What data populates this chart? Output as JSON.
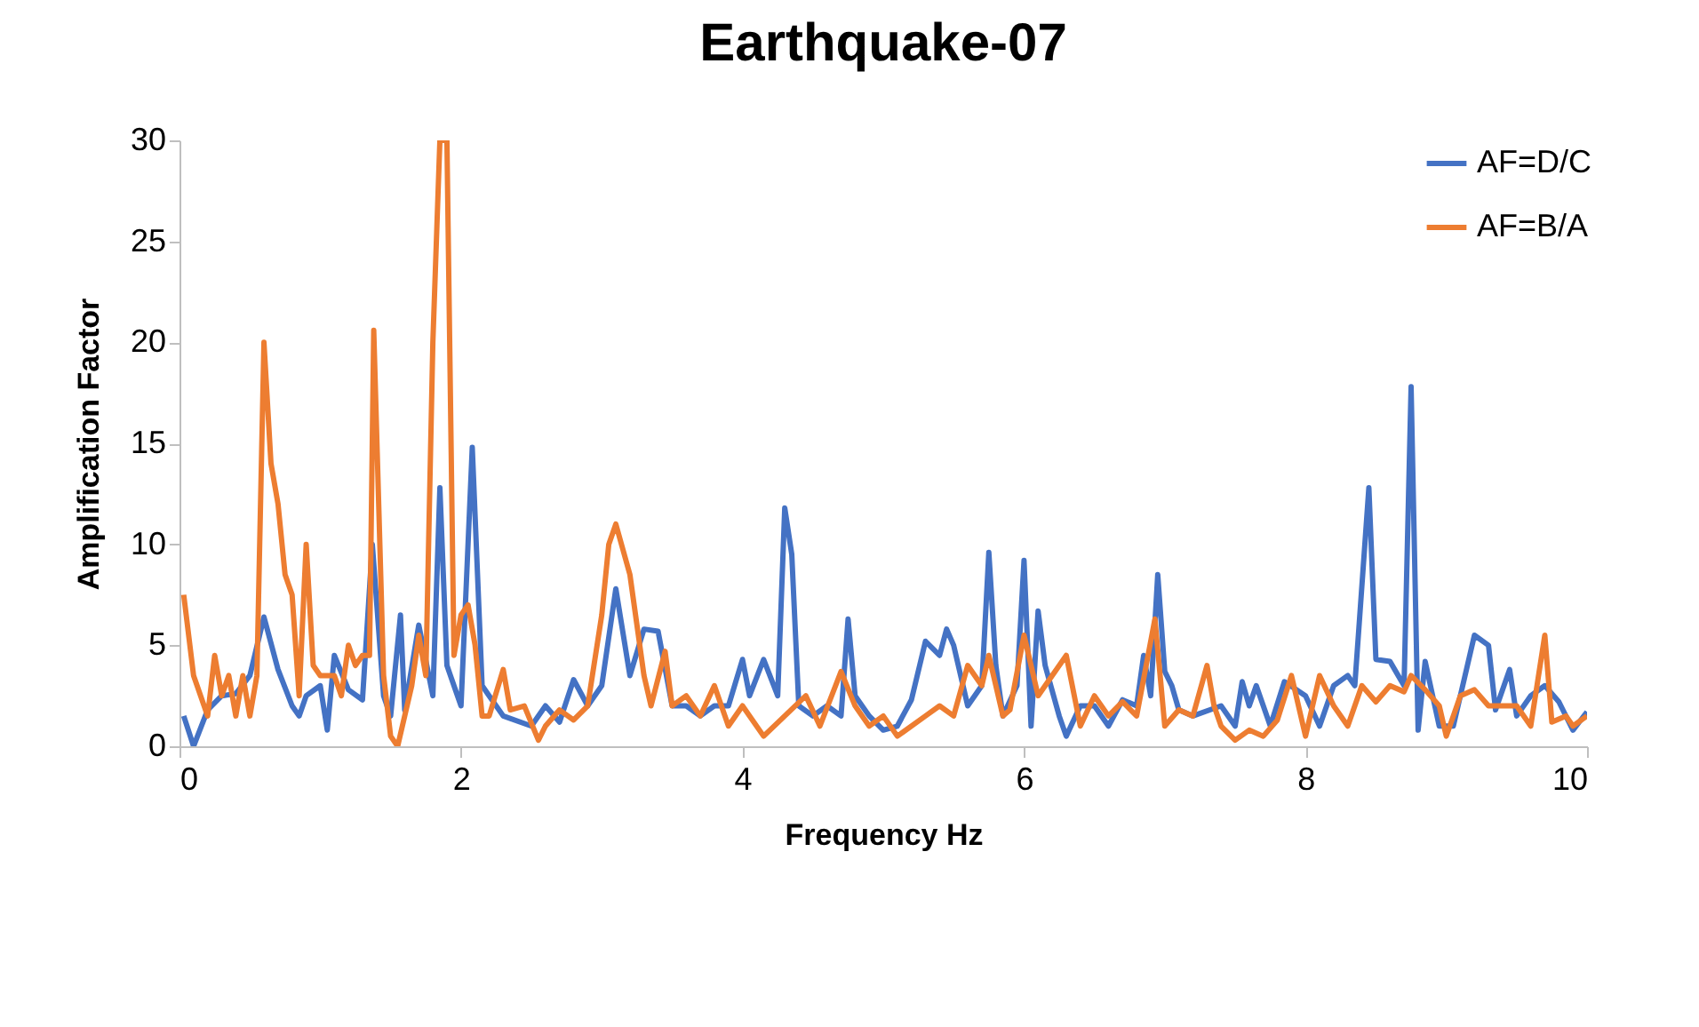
{
  "chart_data": {
    "type": "line",
    "title": "Earthquake-07",
    "xlabel": "Frequency Hz",
    "ylabel": "Amplification Factor",
    "xlim": [
      0,
      10
    ],
    "xticks": [
      0,
      2,
      4,
      6,
      8,
      10
    ],
    "ylim": [
      0,
      30
    ],
    "yticks": [
      0,
      5,
      10,
      15,
      20,
      25,
      30
    ],
    "grid": false,
    "legend": "top right",
    "marker": "none",
    "line_style": "solid",
    "series": [
      {
        "name": "AF=D/C",
        "color": "#4472c4",
        "x": [
          0.03,
          0.1,
          0.2,
          0.3,
          0.4,
          0.5,
          0.6,
          0.7,
          0.8,
          0.85,
          0.9,
          1.0,
          1.05,
          1.1,
          1.2,
          1.3,
          1.37,
          1.45,
          1.5,
          1.57,
          1.6,
          1.7,
          1.8,
          1.85,
          1.9,
          2.0,
          2.08,
          2.15,
          2.2,
          2.3,
          2.5,
          2.6,
          2.7,
          2.8,
          2.9,
          3.0,
          3.1,
          3.2,
          3.3,
          3.4,
          3.5,
          3.6,
          3.7,
          3.8,
          3.9,
          4.0,
          4.05,
          4.15,
          4.25,
          4.3,
          4.35,
          4.4,
          4.5,
          4.6,
          4.7,
          4.75,
          4.8,
          4.9,
          5.0,
          5.1,
          5.2,
          5.3,
          5.4,
          5.45,
          5.5,
          5.6,
          5.7,
          5.75,
          5.8,
          5.85,
          5.95,
          6.0,
          6.05,
          6.1,
          6.15,
          6.25,
          6.3,
          6.4,
          6.5,
          6.6,
          6.7,
          6.8,
          6.85,
          6.9,
          6.95,
          7.0,
          7.05,
          7.1,
          7.2,
          7.4,
          7.5,
          7.55,
          7.6,
          7.65,
          7.75,
          7.85,
          8.0,
          8.1,
          8.2,
          8.3,
          8.35,
          8.45,
          8.5,
          8.6,
          8.7,
          8.75,
          8.8,
          8.85,
          8.95,
          9.05,
          9.2,
          9.3,
          9.35,
          9.45,
          9.5,
          9.6,
          9.7,
          9.8,
          9.9,
          10.0
        ],
        "values": [
          1.5,
          0,
          1.8,
          2.5,
          2.6,
          3.5,
          6.4,
          3.8,
          2.0,
          1.5,
          2.5,
          3.0,
          0.8,
          4.5,
          2.8,
          2.3,
          10.0,
          2.5,
          1.5,
          6.5,
          1.8,
          6.0,
          2.5,
          12.8,
          4.0,
          2.0,
          14.8,
          3.0,
          2.5,
          1.5,
          1.0,
          2.0,
          1.2,
          3.3,
          2.0,
          3.0,
          7.8,
          3.5,
          5.8,
          5.7,
          2.0,
          2.0,
          1.5,
          2.0,
          2.0,
          4.3,
          2.5,
          4.3,
          2.5,
          11.8,
          9.5,
          2.0,
          1.5,
          2.0,
          1.5,
          6.3,
          2.5,
          1.5,
          0.8,
          1.0,
          2.3,
          5.2,
          4.5,
          5.8,
          5.0,
          2.0,
          3.0,
          9.6,
          4.0,
          1.5,
          3.0,
          9.2,
          1.0,
          6.7,
          4.0,
          1.5,
          0.5,
          2.0,
          2.0,
          1.0,
          2.3,
          2.0,
          4.5,
          2.5,
          8.5,
          3.7,
          3.0,
          1.8,
          1.5,
          2.0,
          1.0,
          3.2,
          2.0,
          3.0,
          1.0,
          3.2,
          2.5,
          1.0,
          3.0,
          3.5,
          3.0,
          12.8,
          4.3,
          4.2,
          3.0,
          17.8,
          0.8,
          4.2,
          1.0,
          1.0,
          5.5,
          5.0,
          1.8,
          3.8,
          1.5,
          2.5,
          3.0,
          2.2,
          0.8,
          1.7
        ]
      },
      {
        "name": "AF=B/A",
        "color": "#ed7d31",
        "x": [
          0.03,
          0.1,
          0.2,
          0.25,
          0.3,
          0.35,
          0.4,
          0.45,
          0.5,
          0.55,
          0.6,
          0.65,
          0.7,
          0.75,
          0.8,
          0.85,
          0.9,
          0.95,
          1.0,
          1.1,
          1.15,
          1.2,
          1.25,
          1.3,
          1.35,
          1.38,
          1.45,
          1.5,
          1.55,
          1.65,
          1.7,
          1.75,
          1.8,
          1.85,
          1.9,
          1.95,
          2.0,
          2.05,
          2.1,
          2.15,
          2.2,
          2.3,
          2.35,
          2.45,
          2.55,
          2.6,
          2.7,
          2.8,
          2.9,
          3.0,
          3.05,
          3.1,
          3.2,
          3.3,
          3.35,
          3.45,
          3.5,
          3.6,
          3.7,
          3.8,
          3.9,
          4.0,
          4.15,
          4.3,
          4.45,
          4.55,
          4.7,
          4.8,
          4.9,
          5.0,
          5.1,
          5.3,
          5.4,
          5.5,
          5.6,
          5.7,
          5.75,
          5.85,
          5.9,
          6.0,
          6.1,
          6.2,
          6.3,
          6.4,
          6.5,
          6.6,
          6.7,
          6.8,
          6.93,
          7.0,
          7.1,
          7.2,
          7.3,
          7.35,
          7.4,
          7.5,
          7.6,
          7.7,
          7.8,
          7.9,
          8.0,
          8.1,
          8.2,
          8.3,
          8.4,
          8.5,
          8.6,
          8.7,
          8.75,
          8.85,
          8.95,
          9.0,
          9.1,
          9.2,
          9.3,
          9.4,
          9.5,
          9.6,
          9.7,
          9.75,
          9.85,
          9.9,
          10.0
        ],
        "values": [
          7.5,
          3.5,
          1.5,
          4.5,
          2.5,
          3.5,
          1.5,
          3.5,
          1.5,
          3.5,
          20.0,
          14,
          12,
          8.5,
          7.5,
          2.5,
          10,
          4.0,
          3.5,
          3.5,
          2.5,
          5.0,
          4.0,
          4.5,
          4.5,
          20.6,
          3.5,
          0.5,
          0,
          3.0,
          5.5,
          3.5,
          20,
          30,
          30,
          4.5,
          6.5,
          7.0,
          5.0,
          1.5,
          1.5,
          3.8,
          1.8,
          2.0,
          0.3,
          1.0,
          1.8,
          1.3,
          2.0,
          6.5,
          10,
          11.0,
          8.5,
          3.5,
          2.0,
          4.7,
          2.0,
          2.5,
          1.5,
          3.0,
          1.0,
          2.0,
          0.5,
          1.5,
          2.5,
          1.0,
          3.7,
          2.0,
          1.0,
          1.5,
          0.5,
          1.5,
          2.0,
          1.5,
          4.0,
          3.0,
          4.5,
          1.5,
          1.8,
          5.5,
          2.5,
          3.5,
          4.5,
          1.0,
          2.5,
          1.5,
          2.2,
          1.5,
          6.3,
          1.0,
          1.8,
          1.5,
          4.0,
          2.0,
          1.0,
          0.3,
          0.8,
          0.5,
          1.3,
          3.5,
          0.5,
          3.5,
          2.0,
          1.0,
          3.0,
          2.2,
          3.0,
          2.7,
          3.5,
          2.8,
          2.0,
          0.5,
          2.5,
          2.8,
          2.0,
          2.0,
          2.0,
          1.0,
          5.5,
          1.2,
          1.5,
          1.0,
          1.5
        ]
      }
    ]
  }
}
